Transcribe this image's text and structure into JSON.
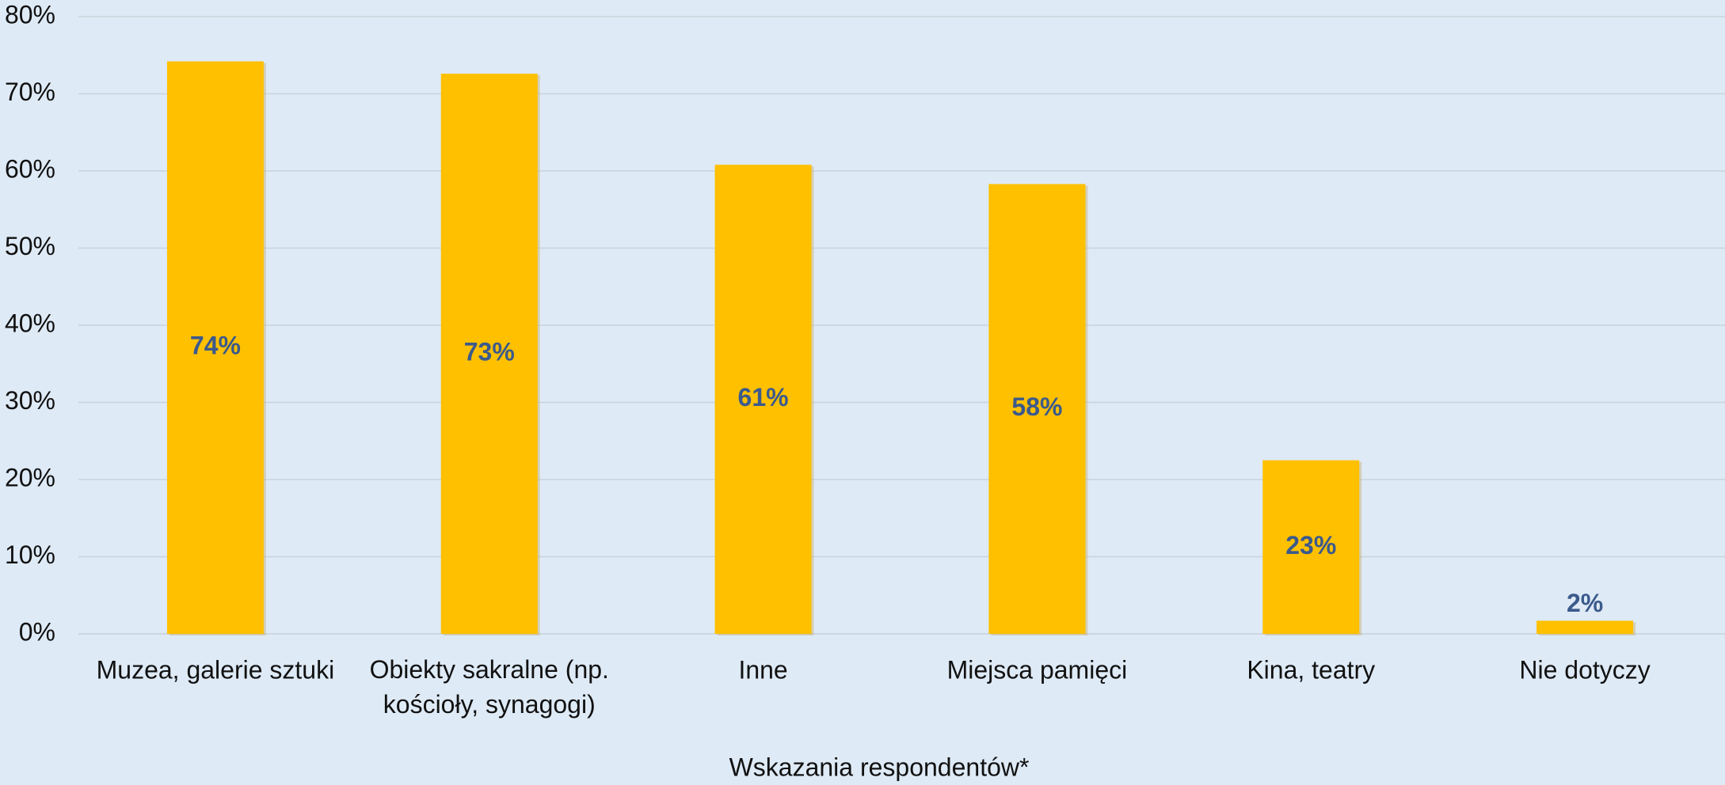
{
  "chart_data": {
    "type": "bar",
    "x_label": "Wskazania respondentów*",
    "categories": [
      "Muzea, galerie sztuki",
      "Obiekty sakralne (np. kościoły, synagogi)",
      "Inne",
      "Miejsca pamięci",
      "Kina, teatry",
      "Nie dotyczy"
    ],
    "values": [
      74.2,
      72.6,
      60.8,
      58.3,
      22.5,
      1.7
    ],
    "value_labels": [
      "74%",
      "73%",
      "61%",
      "58%",
      "23%",
      "2%"
    ],
    "color": "#ffc000",
    "ylim": [
      0,
      80
    ],
    "yticks": [
      {
        "value": 0,
        "label": "0%"
      },
      {
        "value": 10,
        "label": "10%"
      },
      {
        "value": 20,
        "label": "20%"
      },
      {
        "value": 30,
        "label": "30%"
      },
      {
        "value": 40,
        "label": "40%"
      },
      {
        "value": 50,
        "label": "50%"
      },
      {
        "value": 60,
        "label": "60%"
      },
      {
        "value": 70,
        "label": "70%"
      },
      {
        "value": 80,
        "label": "80%"
      }
    ],
    "grid": true
  }
}
